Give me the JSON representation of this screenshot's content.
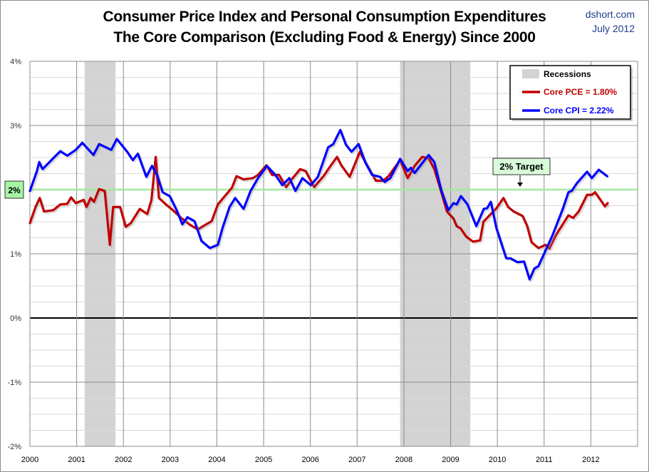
{
  "chart_data": {
    "type": "line",
    "title": "Consumer Price Index and Personal Consumption Expenditures",
    "subtitle": "The Core Comparison (Excluding Food & Energy) Since 2000",
    "source": "dshort.com",
    "date": "July 2012",
    "xlim": [
      2000,
      2013
    ],
    "ylim": [
      -2,
      4
    ],
    "x_ticks": [
      "2000",
      "2001",
      "2002",
      "2003",
      "2004",
      "2005",
      "2006",
      "2007",
      "2008",
      "2009",
      "2010",
      "2011",
      "2012"
    ],
    "y_ticks": [
      {
        "v": 4,
        "label": "4%"
      },
      {
        "v": 3,
        "label": "3%"
      },
      {
        "v": 2,
        "label": "2%"
      },
      {
        "v": 1,
        "label": "1%"
      },
      {
        "v": 0,
        "label": "0%"
      },
      {
        "v": -1,
        "label": "-1%"
      },
      {
        "v": -2,
        "label": "-2%"
      }
    ],
    "grid": true,
    "minor_grid_step": 0.25,
    "legend_position": "top-right",
    "recessions": {
      "name": "Recessions",
      "color": "#d3d3d3",
      "periods": [
        [
          2001.17,
          2001.83
        ],
        [
          2007.92,
          2009.42
        ]
      ]
    },
    "target": {
      "value": 2,
      "label": "2% Target",
      "axis_label": "2%",
      "color": "#a6f0a6"
    },
    "series": [
      {
        "name": "Core PCE = 1.80%",
        "color": "#c00000",
        "points": [
          [
            2000,
            1.48
          ],
          [
            2000.12,
            1.73
          ],
          [
            2000.21,
            1.87
          ],
          [
            2000.3,
            1.66
          ],
          [
            2000.5,
            1.68
          ],
          [
            2000.65,
            1.77
          ],
          [
            2000.8,
            1.78
          ],
          [
            2000.88,
            1.88
          ],
          [
            2000.98,
            1.79
          ],
          [
            2001.15,
            1.84
          ],
          [
            2001.21,
            1.73
          ],
          [
            2001.3,
            1.87
          ],
          [
            2001.37,
            1.81
          ],
          [
            2001.48,
            2.01
          ],
          [
            2001.6,
            1.98
          ],
          [
            2001.71,
            1.14
          ],
          [
            2001.78,
            1.73
          ],
          [
            2001.93,
            1.73
          ],
          [
            2002.05,
            1.42
          ],
          [
            2002.16,
            1.48
          ],
          [
            2002.35,
            1.7
          ],
          [
            2002.51,
            1.62
          ],
          [
            2002.6,
            1.84
          ],
          [
            2002.69,
            2.51
          ],
          [
            2002.76,
            1.87
          ],
          [
            2002.91,
            1.77
          ],
          [
            2003.06,
            1.68
          ],
          [
            2003.22,
            1.57
          ],
          [
            2003.41,
            1.46
          ],
          [
            2003.59,
            1.38
          ],
          [
            2003.77,
            1.46
          ],
          [
            2003.89,
            1.51
          ],
          [
            2004.02,
            1.77
          ],
          [
            2004.17,
            1.9
          ],
          [
            2004.32,
            2.03
          ],
          [
            2004.42,
            2.21
          ],
          [
            2004.57,
            2.16
          ],
          [
            2004.77,
            2.18
          ],
          [
            2004.88,
            2.23
          ],
          [
            2005.06,
            2.38
          ],
          [
            2005.18,
            2.23
          ],
          [
            2005.33,
            2.23
          ],
          [
            2005.48,
            2.04
          ],
          [
            2005.6,
            2.16
          ],
          [
            2005.78,
            2.32
          ],
          [
            2005.9,
            2.29
          ],
          [
            2006.08,
            2.04
          ],
          [
            2006.28,
            2.21
          ],
          [
            2006.43,
            2.37
          ],
          [
            2006.57,
            2.51
          ],
          [
            2006.66,
            2.38
          ],
          [
            2006.84,
            2.2
          ],
          [
            2007.06,
            2.59
          ],
          [
            2007.22,
            2.37
          ],
          [
            2007.4,
            2.14
          ],
          [
            2007.56,
            2.14
          ],
          [
            2007.67,
            2.21
          ],
          [
            2007.92,
            2.46
          ],
          [
            2008.08,
            2.18
          ],
          [
            2008.23,
            2.37
          ],
          [
            2008.39,
            2.51
          ],
          [
            2008.53,
            2.49
          ],
          [
            2008.65,
            2.32
          ],
          [
            2008.77,
            2.04
          ],
          [
            2008.92,
            1.66
          ],
          [
            2009.06,
            1.55
          ],
          [
            2009.13,
            1.43
          ],
          [
            2009.21,
            1.4
          ],
          [
            2009.33,
            1.27
          ],
          [
            2009.48,
            1.19
          ],
          [
            2009.63,
            1.21
          ],
          [
            2009.7,
            1.5
          ],
          [
            2009.98,
            1.71
          ],
          [
            2010.13,
            1.87
          ],
          [
            2010.23,
            1.73
          ],
          [
            2010.35,
            1.66
          ],
          [
            2010.54,
            1.59
          ],
          [
            2010.64,
            1.43
          ],
          [
            2010.73,
            1.18
          ],
          [
            2010.88,
            1.09
          ],
          [
            2011.03,
            1.14
          ],
          [
            2011.11,
            1.08
          ],
          [
            2011.25,
            1.29
          ],
          [
            2011.52,
            1.6
          ],
          [
            2011.62,
            1.56
          ],
          [
            2011.74,
            1.66
          ],
          [
            2011.92,
            1.92
          ],
          [
            2012.02,
            1.92
          ],
          [
            2012.09,
            1.96
          ],
          [
            2012.3,
            1.74
          ],
          [
            2012.36,
            1.79
          ]
        ]
      },
      {
        "name": "Core CPI = 2.22%",
        "color": "#0000ff",
        "points": [
          [
            2000,
            1.98
          ],
          [
            2000.15,
            2.29
          ],
          [
            2000.2,
            2.43
          ],
          [
            2000.27,
            2.32
          ],
          [
            2000.5,
            2.49
          ],
          [
            2000.65,
            2.6
          ],
          [
            2000.8,
            2.53
          ],
          [
            2000.98,
            2.62
          ],
          [
            2001.12,
            2.73
          ],
          [
            2001.36,
            2.54
          ],
          [
            2001.48,
            2.71
          ],
          [
            2001.74,
            2.62
          ],
          [
            2001.86,
            2.79
          ],
          [
            2002.08,
            2.59
          ],
          [
            2002.2,
            2.46
          ],
          [
            2002.31,
            2.56
          ],
          [
            2002.49,
            2.2
          ],
          [
            2002.61,
            2.37
          ],
          [
            2002.72,
            2.23
          ],
          [
            2002.84,
            1.96
          ],
          [
            2002.99,
            1.9
          ],
          [
            2003.14,
            1.68
          ],
          [
            2003.26,
            1.46
          ],
          [
            2003.37,
            1.57
          ],
          [
            2003.52,
            1.51
          ],
          [
            2003.67,
            1.2
          ],
          [
            2003.85,
            1.09
          ],
          [
            2004.02,
            1.14
          ],
          [
            2004.12,
            1.4
          ],
          [
            2004.27,
            1.73
          ],
          [
            2004.39,
            1.87
          ],
          [
            2004.57,
            1.7
          ],
          [
            2004.72,
            1.98
          ],
          [
            2004.88,
            2.18
          ],
          [
            2005.07,
            2.37
          ],
          [
            2005.25,
            2.23
          ],
          [
            2005.4,
            2.07
          ],
          [
            2005.55,
            2.18
          ],
          [
            2005.68,
            1.98
          ],
          [
            2005.83,
            2.18
          ],
          [
            2006.01,
            2.07
          ],
          [
            2006.16,
            2.2
          ],
          [
            2006.28,
            2.45
          ],
          [
            2006.38,
            2.66
          ],
          [
            2006.49,
            2.71
          ],
          [
            2006.64,
            2.93
          ],
          [
            2006.76,
            2.7
          ],
          [
            2006.88,
            2.59
          ],
          [
            2007.03,
            2.71
          ],
          [
            2007.17,
            2.43
          ],
          [
            2007.32,
            2.23
          ],
          [
            2007.49,
            2.2
          ],
          [
            2007.59,
            2.12
          ],
          [
            2007.71,
            2.18
          ],
          [
            2007.92,
            2.48
          ],
          [
            2008.08,
            2.29
          ],
          [
            2008.15,
            2.34
          ],
          [
            2008.23,
            2.26
          ],
          [
            2008.53,
            2.54
          ],
          [
            2008.65,
            2.43
          ],
          [
            2008.8,
            1.99
          ],
          [
            2008.95,
            1.68
          ],
          [
            2009.06,
            1.79
          ],
          [
            2009.13,
            1.77
          ],
          [
            2009.22,
            1.9
          ],
          [
            2009.36,
            1.77
          ],
          [
            2009.55,
            1.43
          ],
          [
            2009.71,
            1.7
          ],
          [
            2009.78,
            1.71
          ],
          [
            2009.86,
            1.81
          ],
          [
            2009.98,
            1.4
          ],
          [
            2010.19,
            0.93
          ],
          [
            2010.28,
            0.93
          ],
          [
            2010.43,
            0.87
          ],
          [
            2010.57,
            0.88
          ],
          [
            2010.69,
            0.6
          ],
          [
            2010.79,
            0.77
          ],
          [
            2010.88,
            0.81
          ],
          [
            2011.18,
            1.29
          ],
          [
            2011.4,
            1.7
          ],
          [
            2011.52,
            1.96
          ],
          [
            2011.59,
            1.98
          ],
          [
            2011.7,
            2.1
          ],
          [
            2011.92,
            2.28
          ],
          [
            2012.02,
            2.18
          ],
          [
            2012.17,
            2.31
          ],
          [
            2012.35,
            2.21
          ]
        ]
      }
    ]
  }
}
